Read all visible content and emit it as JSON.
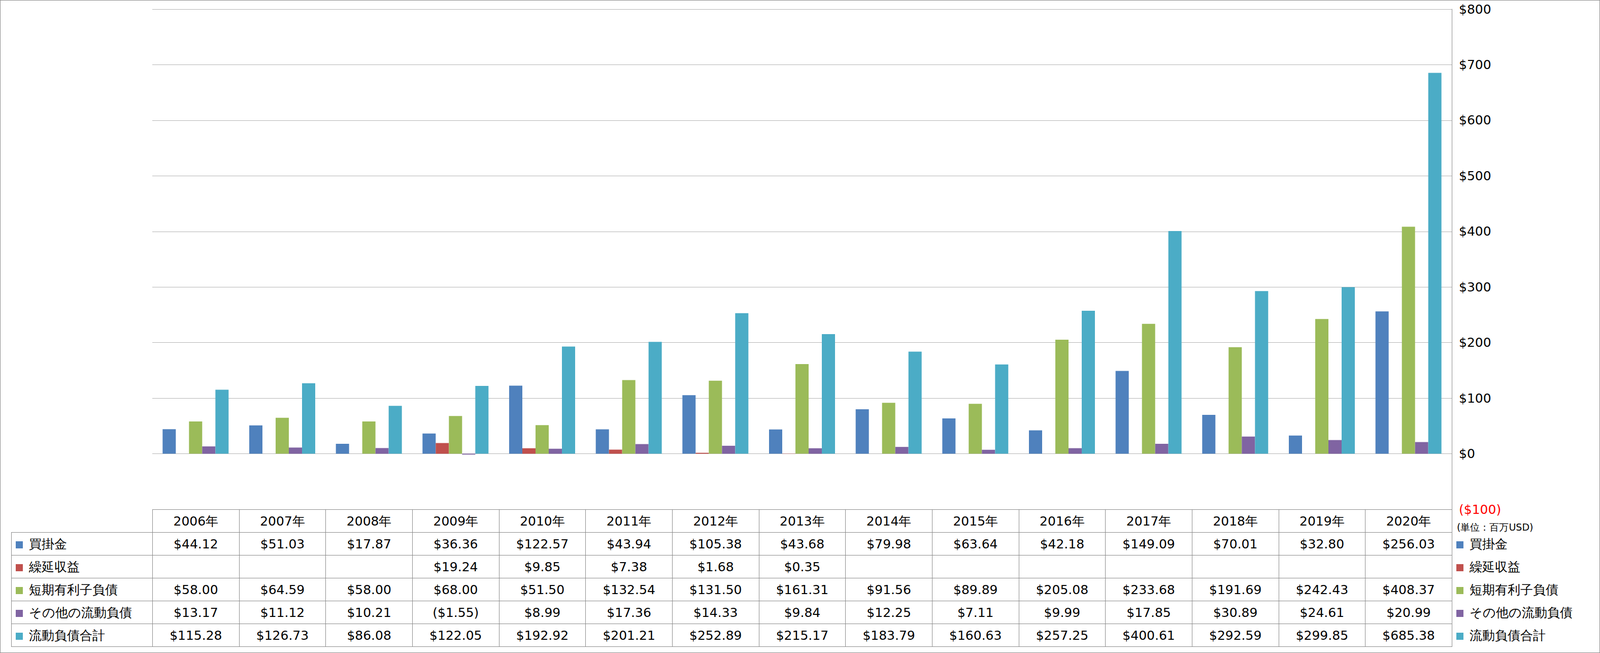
{
  "chart_data": {
    "type": "bar",
    "categories": [
      "2006年",
      "2007年",
      "2008年",
      "2009年",
      "2010年",
      "2011年",
      "2012年",
      "2013年",
      "2014年",
      "2015年",
      "2016年",
      "2017年",
      "2018年",
      "2019年",
      "2020年"
    ],
    "series": [
      {
        "name": "買掛金",
        "color": "#4F81BD",
        "values": [
          44.12,
          51.03,
          17.87,
          36.36,
          122.57,
          43.94,
          105.38,
          43.68,
          79.98,
          63.64,
          42.18,
          149.09,
          70.01,
          32.8,
          256.03
        ],
        "value_labels": [
          "$44.12",
          "$51.03",
          "$17.87",
          "$36.36",
          "$122.57",
          "$43.94",
          "$105.38",
          "$43.68",
          "$79.98",
          "$63.64",
          "$42.18",
          "$149.09",
          "$70.01",
          "$32.80",
          "$256.03"
        ]
      },
      {
        "name": "繰延収益",
        "color": "#C0504D",
        "values": [
          null,
          null,
          null,
          19.24,
          9.85,
          7.38,
          1.68,
          0.35,
          null,
          null,
          null,
          null,
          null,
          null,
          null
        ],
        "value_labels": [
          null,
          null,
          null,
          "$19.24",
          "$9.85",
          "$7.38",
          "$1.68",
          "$0.35",
          null,
          null,
          null,
          null,
          null,
          null,
          null
        ]
      },
      {
        "name": "短期有利子負債",
        "color": "#9BBB59",
        "values": [
          58.0,
          64.59,
          58.0,
          68.0,
          51.5,
          132.54,
          131.5,
          161.31,
          91.56,
          89.89,
          205.08,
          233.68,
          191.69,
          242.43,
          408.37
        ],
        "value_labels": [
          "$58.00",
          "$64.59",
          "$58.00",
          "$68.00",
          "$51.50",
          "$132.54",
          "$131.50",
          "$161.31",
          "$91.56",
          "$89.89",
          "$205.08",
          "$233.68",
          "$191.69",
          "$242.43",
          "$408.37"
        ]
      },
      {
        "name": "その他の流動負債",
        "color": "#8064A2",
        "values": [
          13.17,
          11.12,
          10.21,
          -1.55,
          8.99,
          17.36,
          14.33,
          9.84,
          12.25,
          7.11,
          9.99,
          17.85,
          30.89,
          24.61,
          20.99
        ],
        "value_labels": [
          "$13.17",
          "$11.12",
          "$10.21",
          "($1.55)",
          "$8.99",
          "$17.36",
          "$14.33",
          "$9.84",
          "$12.25",
          "$7.11",
          "$9.99",
          "$17.85",
          "$30.89",
          "$24.61",
          "$20.99"
        ]
      },
      {
        "name": "流動負債合計",
        "color": "#4BACC6",
        "values": [
          115.28,
          126.73,
          86.08,
          122.05,
          192.92,
          201.21,
          252.89,
          215.17,
          183.79,
          160.63,
          257.25,
          400.61,
          292.59,
          299.85,
          685.38
        ],
        "value_labels": [
          "$115.28",
          "$126.73",
          "$86.08",
          "$122.05",
          "$192.92",
          "$201.21",
          "$252.89",
          "$215.17",
          "$183.79",
          "$160.63",
          "$257.25",
          "$400.61",
          "$292.59",
          "$299.85",
          "$685.38"
        ]
      }
    ],
    "ylim": [
      -100,
      800
    ],
    "yticks": [
      {
        "value": -100,
        "label": "($100)"
      },
      {
        "value": 0,
        "label": "$0"
      },
      {
        "value": 100,
        "label": "$100"
      },
      {
        "value": 200,
        "label": "$200"
      },
      {
        "value": 300,
        "label": "$300"
      },
      {
        "value": 400,
        "label": "$400"
      },
      {
        "value": 500,
        "label": "$500"
      },
      {
        "value": 600,
        "label": "$600"
      },
      {
        "value": 700,
        "label": "$700"
      },
      {
        "value": 800,
        "label": "$800"
      }
    ],
    "grid": true,
    "tick_labels": "y",
    "annotation": "(単位：百万USD)"
  }
}
